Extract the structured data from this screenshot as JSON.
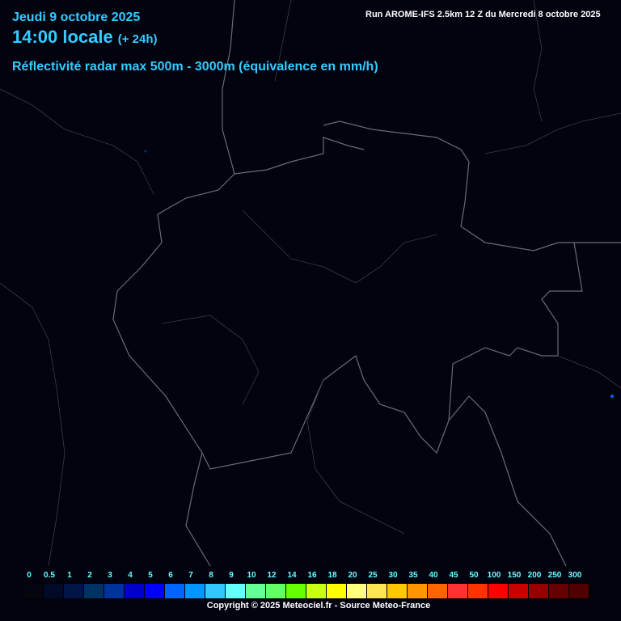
{
  "header": {
    "date": "Jeudi 9 octobre 2025",
    "time": "14:00 locale",
    "offset": "(+ 24h)",
    "parameter": "Réflectivité radar max 500m - 3000m (équivalence en mm/h)",
    "run": "Run AROME-IFS 2.5km 12 Z du Mercredi 8 octobre 2025"
  },
  "legend": {
    "labels": [
      "0",
      "0.5",
      "1",
      "2",
      "3",
      "4",
      "5",
      "6",
      "7",
      "8",
      "9",
      "10",
      "12",
      "14",
      "16",
      "18",
      "20",
      "25",
      "30",
      "35",
      "40",
      "45",
      "50",
      "100",
      "150",
      "200",
      "250",
      "300"
    ],
    "colors": [
      "#05050f",
      "#000a28",
      "#001446",
      "#003264",
      "#00329b",
      "#0000c8",
      "#0000ff",
      "#0064ff",
      "#0096ff",
      "#32c8ff",
      "#64ffff",
      "#64ff96",
      "#64ff64",
      "#64ff00",
      "#c8ff14",
      "#ffff00",
      "#ffff80",
      "#ffe650",
      "#ffc800",
      "#ff9600",
      "#ff6400",
      "#ff3232",
      "#ff3200",
      "#ff0000",
      "#c80000",
      "#960000",
      "#640000",
      "#500000"
    ]
  },
  "footer": {
    "copyright": "Copyright © 2025 Meteociel.fr - Source Meteo-France"
  },
  "colors": {
    "background": "#03030f",
    "title": "#33ccff",
    "legend_text": "#66ffff",
    "border": "#777777"
  }
}
